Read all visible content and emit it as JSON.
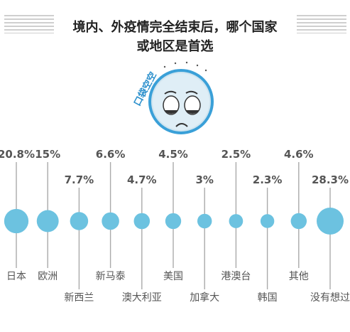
{
  "header": {
    "title_line1": "境内、外疫情完全结束后，哪个国家",
    "title_line2": "或地区是首选"
  },
  "mascot": {
    "text": "口袋空空",
    "icon": "sad-face-icon"
  },
  "colors": {
    "bubble": "#6cc2e0",
    "leader_line": "#aaaaaa",
    "value_text": "#555555",
    "label_text": "#555555",
    "mascot_ring": "#3aa0d8"
  },
  "chart_data": {
    "type": "bubble",
    "title": "境内、外疫情完全结束后，哪个国家或地区是首选",
    "unit": "%",
    "categories": [
      "日本",
      "欧洲",
      "新西兰",
      "新马泰",
      "澳大利亚",
      "美国",
      "加拿大",
      "港澳台",
      "韩国",
      "其他",
      "没有想过"
    ],
    "values": [
      20.8,
      15,
      7.7,
      6.6,
      4.7,
      4.5,
      3,
      2.5,
      2.3,
      4.6,
      28.3
    ],
    "value_labels": [
      "20.8%",
      "15%",
      "7.7%",
      "6.6%",
      "4.7%",
      "4.5%",
      "3%",
      "2.5%",
      "2.3%",
      "4.6%",
      "28.3%"
    ],
    "label_rows": [
      "upper",
      "upper",
      "lower",
      "upper",
      "lower",
      "upper",
      "lower",
      "upper",
      "lower",
      "upper",
      "lower"
    ]
  }
}
